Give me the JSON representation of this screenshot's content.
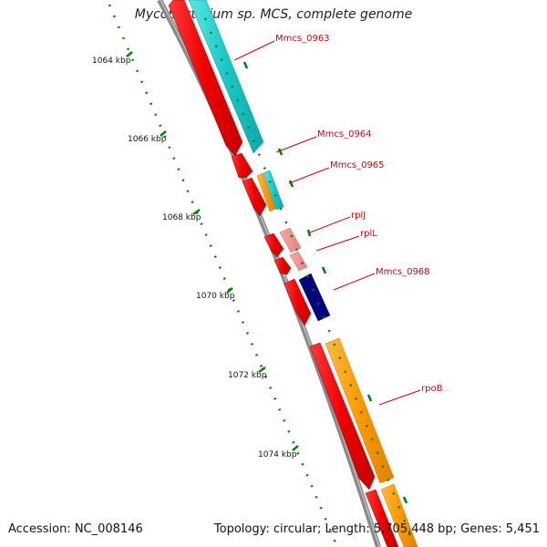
{
  "title": "Mycobacterium sp. MCS, complete genome",
  "footer": {
    "accession": "Accession: NC_008146",
    "summary": "Topology: circular; Length: 5,705,448 bp; Genes: 5,451"
  },
  "colors": {
    "cds_strand": "#ee0000",
    "rna_light": "#f08080",
    "teal": "#18c8c8",
    "orange": "#ff9900",
    "navy": "#000080",
    "backbone": "#808080",
    "tick": "#008000",
    "label": "#d40000"
  },
  "ruler": [
    {
      "label": "1064 kbp"
    },
    {
      "label": "1066 kbp"
    },
    {
      "label": "1068 kbp"
    },
    {
      "label": "1070 kbp"
    },
    {
      "label": "1072 kbp"
    },
    {
      "label": "1074 kbp"
    }
  ],
  "gene_labels": [
    "Mmcs_0963",
    "Mmcs_0964",
    "Mmcs_0965",
    "rplJ",
    "rplL",
    "Mmcs_0968",
    "rpoB"
  ]
}
